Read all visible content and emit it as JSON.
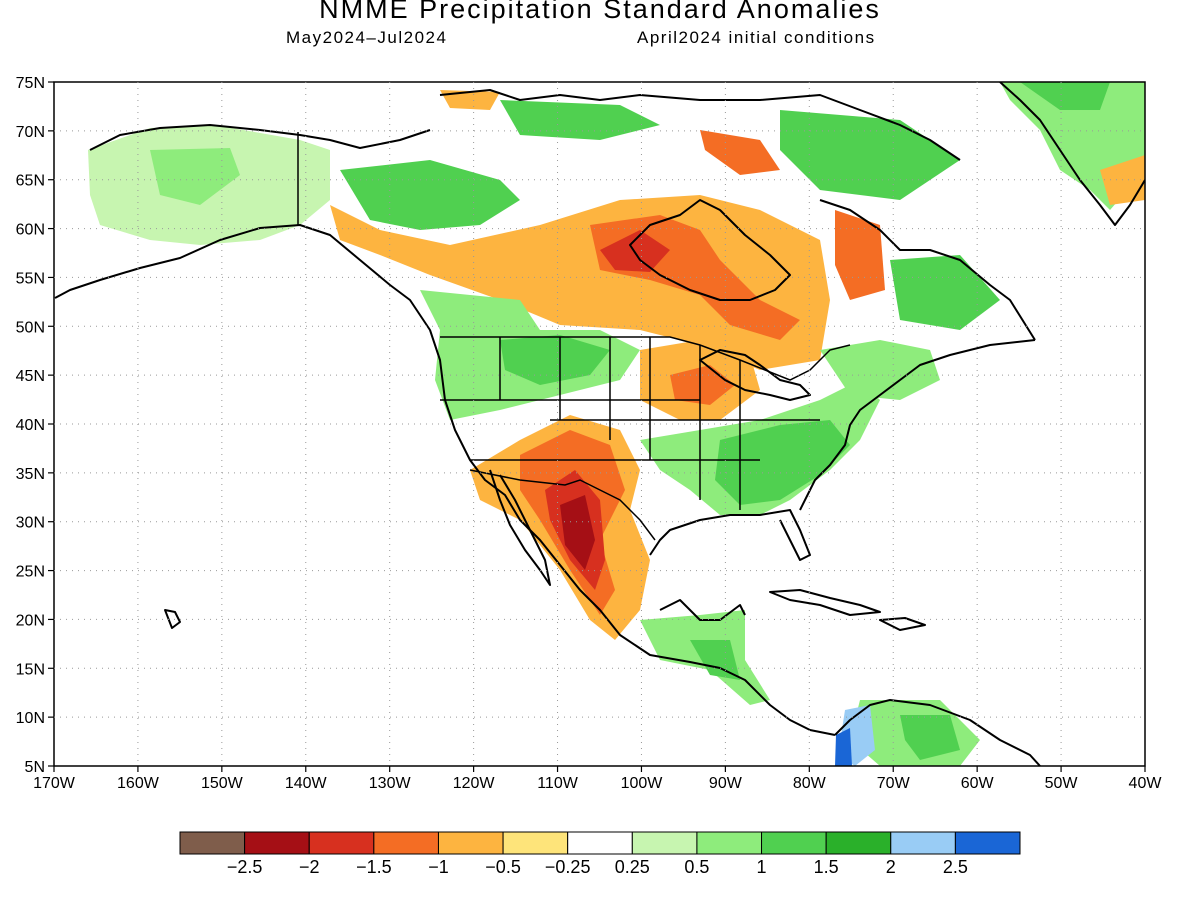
{
  "title": "NMME Precipitation Standard Anomalies",
  "subtitle_left": "May2024–Jul2024",
  "subtitle_right": "April2024 initial conditions",
  "map": {
    "lon_range": [
      -170,
      -40
    ],
    "lat_range": [
      5,
      75
    ],
    "lon_ticks": [
      "170W",
      "160W",
      "150W",
      "140W",
      "130W",
      "120W",
      "110W",
      "100W",
      "90W",
      "80W",
      "70W",
      "60W",
      "50W",
      "40W"
    ],
    "lat_ticks": [
      "5N",
      "10N",
      "15N",
      "20N",
      "25N",
      "30N",
      "35N",
      "40N",
      "45N",
      "50N",
      "55N",
      "60N",
      "65N",
      "70N",
      "75N"
    ],
    "grid": "dotted"
  },
  "legend": {
    "colors": [
      "#7f5d4b",
      "#a50f15",
      "#d7301f",
      "#f46d24",
      "#fdb440",
      "#fee47a",
      "#ffffff",
      "#c7f5b0",
      "#8eec7c",
      "#50d050",
      "#2ab02a",
      "#99ccf5",
      "#1a66d6"
    ],
    "labels": [
      "−2.5",
      "−2",
      "−1.5",
      "−1",
      "−0.5",
      "−0.25",
      "0.25",
      "0.5",
      "1",
      "1.5",
      "2",
      "2.5"
    ]
  },
  "regions": [
    {
      "name": "alaska-wet",
      "color": "#8eec7c"
    },
    {
      "name": "canada-dry",
      "color": "#fdb440"
    },
    {
      "name": "hudson-dry",
      "color": "#f46d24"
    },
    {
      "name": "southwest-dry",
      "color": "#d7301f"
    },
    {
      "name": "mexico-very-dry",
      "color": "#a50f15"
    },
    {
      "name": "southeast-wet",
      "color": "#50d050"
    },
    {
      "name": "northwest-wet",
      "color": "#c7f5b0"
    },
    {
      "name": "greenland-wet",
      "color": "#50d050"
    },
    {
      "name": "colombia-wet",
      "color": "#99ccf5"
    }
  ]
}
